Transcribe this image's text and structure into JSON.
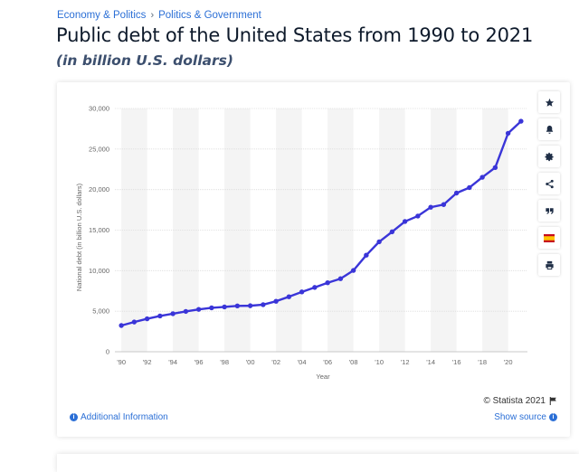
{
  "breadcrumb": {
    "items": [
      "Economy & Politics",
      "Politics & Government"
    ],
    "separator": "›"
  },
  "header": {
    "title": "Public debt of the United States from 1990 to 2021",
    "subtitle": "(in billion U.S. dollars)"
  },
  "chart_data": {
    "type": "line",
    "title": "Public debt of the United States from 1990 to 2021",
    "subtitle": "(in billion U.S. dollars)",
    "xlabel": "Year",
    "ylabel": "National debt (in billion U.S. dollars)",
    "x": [
      1990,
      1991,
      1992,
      1993,
      1994,
      1995,
      1996,
      1997,
      1998,
      1999,
      2000,
      2001,
      2002,
      2003,
      2004,
      2005,
      2006,
      2007,
      2008,
      2009,
      2010,
      2011,
      2012,
      2013,
      2014,
      2015,
      2016,
      2017,
      2018,
      2019,
      2020,
      2021
    ],
    "series": [
      {
        "name": "Public debt",
        "color": "#3a35d8",
        "values": [
          3233,
          3665,
          4065,
          4411,
          4693,
          4974,
          5225,
          5413,
          5526,
          5656,
          5674,
          5807,
          6228,
          6783,
          7379,
          7933,
          8507,
          9008,
          10025,
          11910,
          13562,
          14790,
          16066,
          16738,
          17824,
          18151,
          19573,
          20245,
          21516,
          22719,
          26945,
          28430
        ]
      }
    ],
    "x_ticks": [
      "'90",
      "'92",
      "'94",
      "'96",
      "'98",
      "'00",
      "'02",
      "'04",
      "'06",
      "'08",
      "'10",
      "'12",
      "'14",
      "'16",
      "'18",
      "'20"
    ],
    "y_ticks": [
      "0",
      "5,000",
      "10,000",
      "15,000",
      "20,000",
      "25,000",
      "30,000"
    ],
    "ylim": [
      0,
      30000
    ],
    "xlim": [
      1989.5,
      2021.5
    ],
    "grid": true,
    "alternating_band_color": "#f4f4f4"
  },
  "toolbar": {
    "items": [
      {
        "name": "favorite",
        "icon": "star-icon"
      },
      {
        "name": "notification",
        "icon": "bell-icon"
      },
      {
        "name": "settings",
        "icon": "gear-icon"
      },
      {
        "name": "share",
        "icon": "share-icon"
      },
      {
        "name": "cite",
        "icon": "quote-icon"
      },
      {
        "name": "language",
        "icon": "spain-flag-icon"
      },
      {
        "name": "print",
        "icon": "print-icon"
      }
    ]
  },
  "footer": {
    "additional_info": "Additional Information",
    "copyright": "© Statista 2021",
    "show_source": "Show source"
  }
}
